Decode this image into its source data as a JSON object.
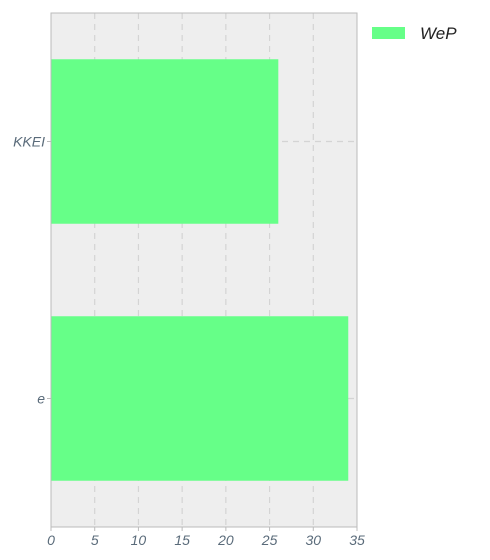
{
  "chart_data": {
    "type": "bar",
    "orientation": "horizontal",
    "categories": [
      "KKEI",
      "e"
    ],
    "series": [
      {
        "name": "WeP",
        "values": [
          26,
          34
        ]
      }
    ],
    "xlim": [
      0,
      35
    ],
    "x_ticks": [
      0,
      5,
      10,
      15,
      20,
      25,
      30,
      35
    ],
    "title": "",
    "xlabel": "",
    "ylabel": "",
    "grid": true,
    "legend_position": "top-right",
    "colors": {
      "bar": "#66ff88",
      "plot_background": "#eeeeee",
      "grid": "#d4d4d4",
      "axis": "#bbbbbb",
      "tick_text": "#5a6b7a"
    }
  }
}
